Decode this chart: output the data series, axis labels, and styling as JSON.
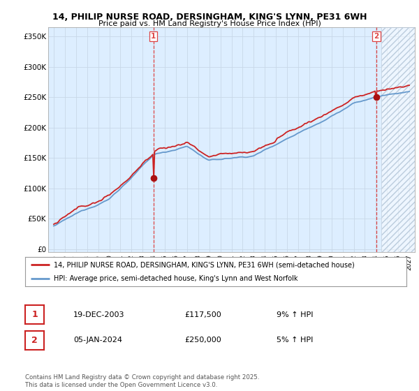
{
  "title_line1": "14, PHILIP NURSE ROAD, DERSINGHAM, KING'S LYNN, PE31 6WH",
  "title_line2": "Price paid vs. HM Land Registry's House Price Index (HPI)",
  "ylabel_ticks": [
    "£0",
    "£50K",
    "£100K",
    "£150K",
    "£200K",
    "£250K",
    "£300K",
    "£350K"
  ],
  "ytick_values": [
    0,
    50000,
    100000,
    150000,
    200000,
    250000,
    300000,
    350000
  ],
  "ylim": [
    -5000,
    365000
  ],
  "xlim_start": 1994.5,
  "xlim_end": 2027.5,
  "future_start": 2024.5,
  "purchase1_year": 2003.97,
  "purchase1_price": 117500,
  "purchase2_year": 2024.03,
  "purchase2_price": 250000,
  "chart_bg_color": "#ddeeff",
  "future_hatch_color": "#bbccdd",
  "hpi_color": "#6699cc",
  "price_color": "#cc2222",
  "vline_color": "#dd4444",
  "marker_color": "#aa1111",
  "legend_label1": "14, PHILIP NURSE ROAD, DERSINGHAM, KING'S LYNN, PE31 6WH (semi-detached house)",
  "legend_label2": "HPI: Average price, semi-detached house, King's Lynn and West Norfolk",
  "annotation1_date": "19-DEC-2003",
  "annotation1_price": "£117,500",
  "annotation1_hpi": "9% ↑ HPI",
  "annotation2_date": "05-JAN-2024",
  "annotation2_price": "£250,000",
  "annotation2_hpi": "5% ↑ HPI",
  "footer": "Contains HM Land Registry data © Crown copyright and database right 2025.\nThis data is licensed under the Open Government Licence v3.0.",
  "background_color": "#ffffff",
  "grid_color": "#c8d8e8"
}
